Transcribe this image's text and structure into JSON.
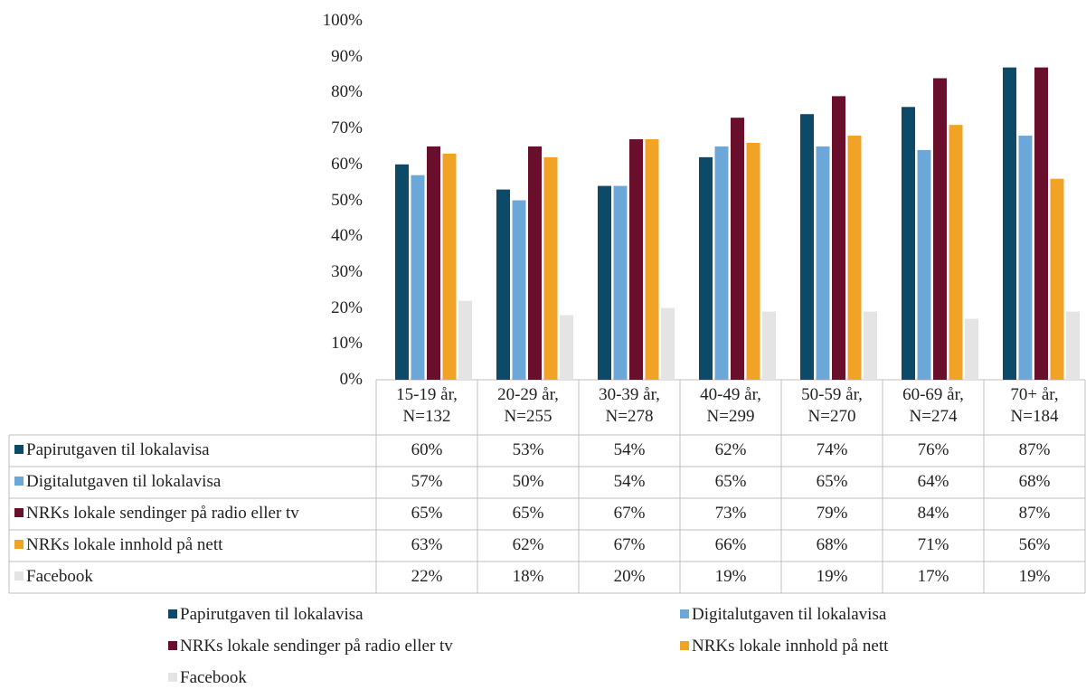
{
  "chart_data": {
    "type": "bar",
    "categories": [
      "15-19 år, N=132",
      "20-29 år, N=255",
      "30-39 år, N=278",
      "40-49 år, N=299",
      "50-59 år, N=270",
      "60-69 år, N=274",
      "70+ år, N=184"
    ],
    "series": [
      {
        "name": "Papirutgaven til lokalavisa",
        "color": "#0d4a67",
        "values": [
          60,
          53,
          54,
          62,
          74,
          76,
          87
        ],
        "value_labels": [
          "60%",
          "53%",
          "54%",
          "62%",
          "74%",
          "76%",
          "87%"
        ]
      },
      {
        "name": "Digitalutgaven til lokalavisa",
        "color": "#6ca7d9",
        "values": [
          57,
          50,
          54,
          65,
          65,
          64,
          68
        ],
        "value_labels": [
          "57%",
          "50%",
          "54%",
          "65%",
          "65%",
          "64%",
          "68%"
        ]
      },
      {
        "name": "NRKs lokale sendinger på radio eller tv",
        "color": "#6a0f2b",
        "values": [
          65,
          65,
          67,
          73,
          79,
          84,
          87
        ],
        "value_labels": [
          "65%",
          "65%",
          "67%",
          "73%",
          "79%",
          "84%",
          "87%"
        ]
      },
      {
        "name": "NRKs lokale innhold på nett",
        "color": "#f2a226",
        "values": [
          63,
          62,
          67,
          66,
          68,
          71,
          56
        ],
        "value_labels": [
          "63%",
          "62%",
          "67%",
          "66%",
          "68%",
          "71%",
          "56%"
        ]
      },
      {
        "name": "Facebook",
        "color": "#e4e4e4",
        "values": [
          22,
          18,
          20,
          19,
          19,
          17,
          19
        ],
        "value_labels": [
          "22%",
          "18%",
          "20%",
          "19%",
          "19%",
          "17%",
          "19%"
        ]
      }
    ],
    "ylim": [
      0,
      100
    ],
    "yticks": [
      {
        "value": 0,
        "label": "0%"
      },
      {
        "value": 10,
        "label": "10%"
      },
      {
        "value": 20,
        "label": "20%"
      },
      {
        "value": 30,
        "label": "30%"
      },
      {
        "value": 40,
        "label": "40%"
      },
      {
        "value": 50,
        "label": "50%"
      },
      {
        "value": 60,
        "label": "60%"
      },
      {
        "value": 70,
        "label": "70%"
      },
      {
        "value": 80,
        "label": "80%"
      },
      {
        "value": 90,
        "label": "90%"
      },
      {
        "value": 100,
        "label": "100%"
      }
    ],
    "grid": false
  }
}
